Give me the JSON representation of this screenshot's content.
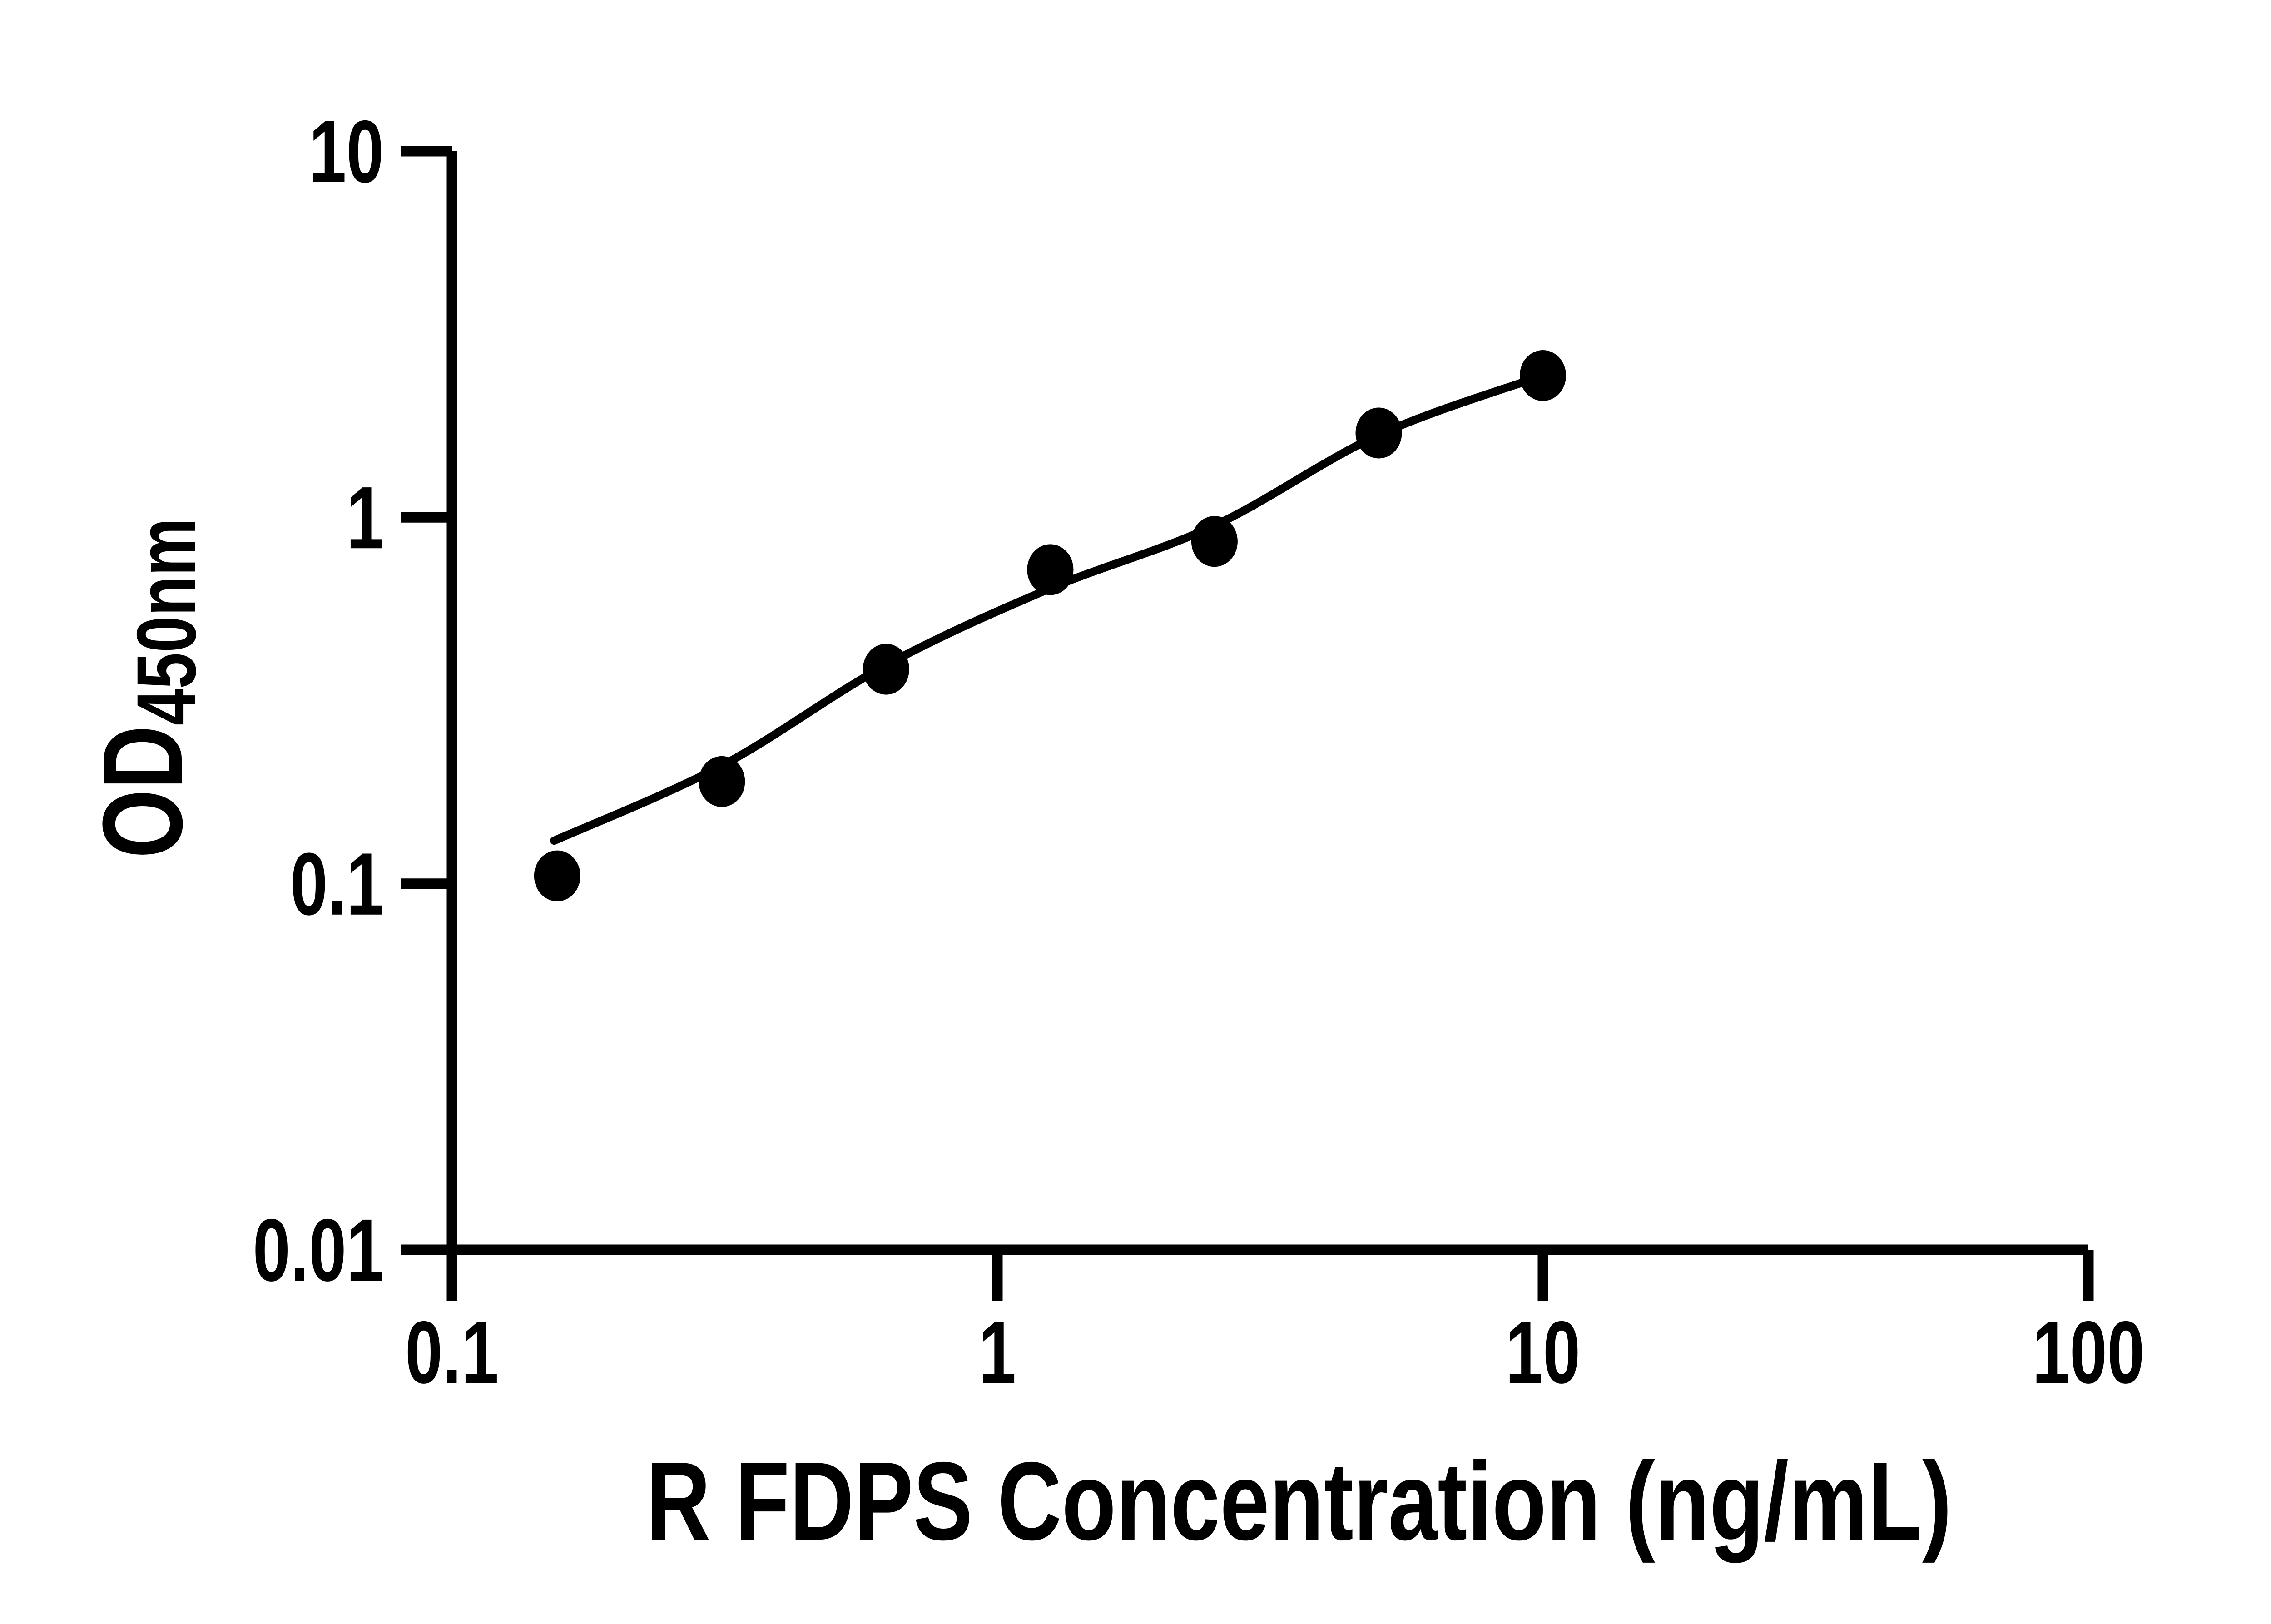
{
  "figure": {
    "background": "#ffffff",
    "ink": "#000000"
  },
  "chart_data": {
    "type": "scatter",
    "title": "",
    "xlabel": "R FDPS Concentration (ng/mL)",
    "ylabel": "OD450nm",
    "ylabel_main": "OD",
    "ylabel_sub": "450nm",
    "xscale": "log",
    "yscale": "log",
    "xlim": [
      0.1,
      100
    ],
    "ylim": [
      0.01,
      10
    ],
    "grid": false,
    "legend": false,
    "x_ticks": [
      {
        "v": 0.1,
        "label": "0.1"
      },
      {
        "v": 1,
        "label": "1"
      },
      {
        "v": 10,
        "label": "10"
      },
      {
        "v": 100,
        "label": "100"
      }
    ],
    "y_ticks": [
      {
        "v": 10,
        "label": "10"
      },
      {
        "v": 1,
        "label": "1"
      },
      {
        "v": 0.1,
        "label": "0.1"
      },
      {
        "v": 0.01,
        "label": "0.01"
      }
    ],
    "series": [
      {
        "name": "standard-points",
        "type": "scatter",
        "marker": "filled-circle",
        "color": "#000000",
        "x": [
          0.156,
          0.3125,
          0.625,
          1.25,
          2.5,
          5,
          10
        ],
        "y": [
          0.105,
          0.19,
          0.385,
          0.72,
          0.86,
          1.7,
          2.44
        ]
      },
      {
        "name": "fit-curve",
        "type": "line",
        "color": "#000000",
        "x": [
          0.154,
          0.3125,
          0.625,
          1.25,
          2.5,
          5,
          10
        ],
        "y": [
          0.131,
          0.21,
          0.395,
          0.64,
          0.95,
          1.68,
          2.44
        ]
      }
    ]
  }
}
